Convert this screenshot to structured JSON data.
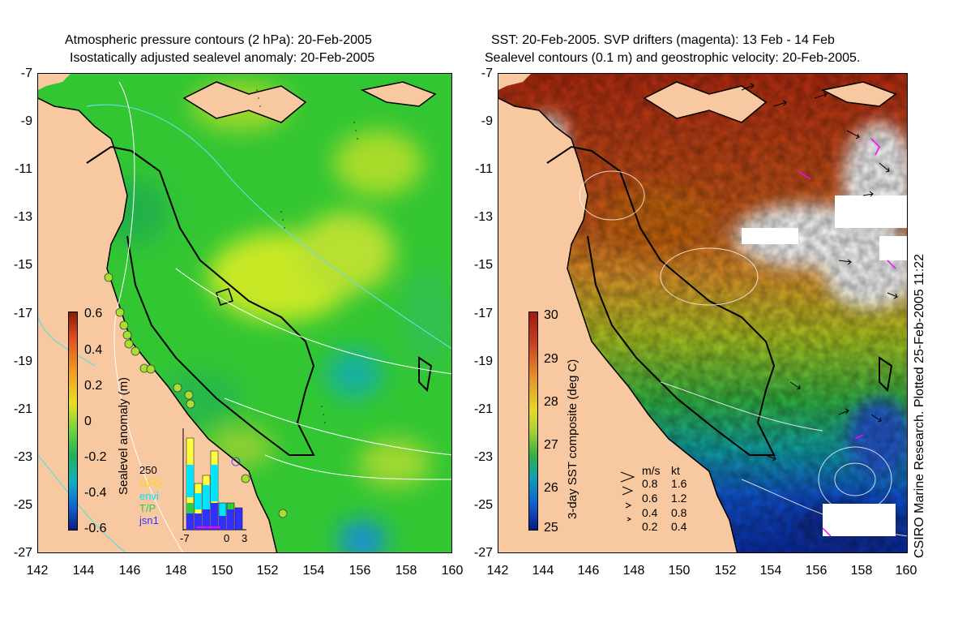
{
  "left_panel": {
    "title_line1": "Atmospheric pressure contours (2 hPa): 20-Feb-2005",
    "title_line2": "Isostatically adjusted sealevel anomaly: 20-Feb-2005",
    "colorbar_label": "Sealevel anomaly (m)",
    "colorbar_ticks": [
      "0.6",
      "0.4",
      "0.2",
      "0",
      "-0.2",
      "-0.4",
      "-0.6"
    ],
    "histogram": {
      "y_tick": "250",
      "x_ticks": [
        "-7",
        "0",
        "3"
      ],
      "legend": [
        {
          "label": "GFO",
          "color": "#ffd700"
        },
        {
          "label": "envi",
          "color": "#00e5ff"
        },
        {
          "label": "T/P",
          "color": "#2ecc40"
        },
        {
          "label": "jsn1",
          "color": "#3030ff"
        }
      ]
    }
  },
  "right_panel": {
    "title_line1": "SST: 20-Feb-2005. SVP drifters (magenta): 13 Feb - 14 Feb",
    "title_line2": "Sealevel contours (0.1 m) and geostrophic velocity: 20-Feb-2005.",
    "colorbar_label": "3-day SST composite (deg C)",
    "colorbar_ticks": [
      "30",
      "29",
      "28",
      "27",
      "26",
      "25"
    ],
    "velocity_legend": {
      "header_ms": "m/s",
      "header_kt": "kt",
      "rows": [
        {
          "ms": "0.8",
          "kt": "1.6"
        },
        {
          "ms": "0.6",
          "kt": "1.2"
        },
        {
          "ms": "0.4",
          "kt": "0.8"
        },
        {
          "ms": "0.2",
          "kt": "0.4"
        }
      ]
    },
    "credit": "CSIRO Marine Research. Plotted 25-Feb-2005 11:22"
  },
  "axes": {
    "x_ticks": [
      "142",
      "144",
      "146",
      "148",
      "150",
      "152",
      "154",
      "156",
      "158",
      "160"
    ],
    "y_ticks": [
      "-7",
      "-9",
      "-11",
      "-13",
      "-15",
      "-17",
      "-19",
      "-21",
      "-23",
      "-25",
      "-27"
    ]
  },
  "colors": {
    "land": "#f8c8a0",
    "anomaly_base": "#33cc33",
    "sst_warm": "#b02a10",
    "sst_cool": "#0a2aa0"
  }
}
